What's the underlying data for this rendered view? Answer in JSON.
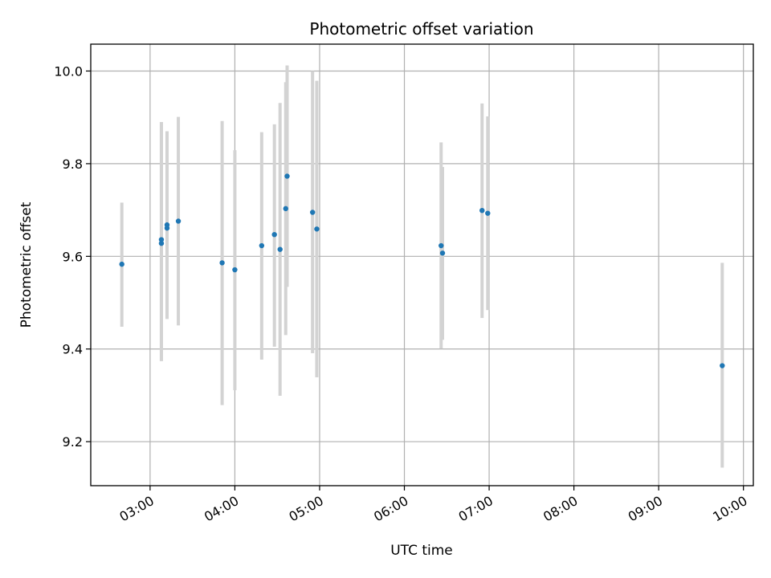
{
  "chart_data": {
    "type": "scatter",
    "title": "Photometric offset variation",
    "xlabel": "UTC time",
    "ylabel": "Photometric offset",
    "xlim": [
      "02:18",
      "10:07"
    ],
    "ylim": [
      9.105,
      10.058
    ],
    "grid": true,
    "x_ticks": [
      "03:00",
      "04:00",
      "05:00",
      "06:00",
      "07:00",
      "08:00",
      "09:00",
      "10:00"
    ],
    "y_ticks": [
      9.2,
      9.4,
      9.6,
      9.8,
      10.0
    ],
    "y_tick_labels": [
      "9.2",
      "9.4",
      "9.6",
      "9.8",
      "10.0"
    ],
    "colors": {
      "point": "#1f77b4",
      "error_bar": "#d3d3d3",
      "grid": "#b0b0b0"
    },
    "series": [
      {
        "points": [
          {
            "x": "02:40",
            "y": 9.583,
            "lo": 9.448,
            "hi": 9.716
          },
          {
            "x": "03:08",
            "y": 9.628,
            "lo": 9.374,
            "hi": 9.89
          },
          {
            "x": "03:08",
            "y": 9.636,
            "lo": 9.374,
            "hi": 9.89
          },
          {
            "x": "03:12",
            "y": 9.661,
            "lo": 9.465,
            "hi": 9.87
          },
          {
            "x": "03:12",
            "y": 9.668,
            "lo": 9.465,
            "hi": 9.87
          },
          {
            "x": "03:20",
            "y": 9.676,
            "lo": 9.451,
            "hi": 9.901
          },
          {
            "x": "03:51",
            "y": 9.586,
            "lo": 9.279,
            "hi": 9.892
          },
          {
            "x": "04:00",
            "y": 9.571,
            "lo": 9.311,
            "hi": 9.829
          },
          {
            "x": "04:19",
            "y": 9.623,
            "lo": 9.377,
            "hi": 9.868
          },
          {
            "x": "04:28",
            "y": 9.647,
            "lo": 9.405,
            "hi": 9.885
          },
          {
            "x": "04:32",
            "y": 9.615,
            "lo": 9.299,
            "hi": 9.931
          },
          {
            "x": "04:36",
            "y": 9.703,
            "lo": 9.43,
            "hi": 9.976
          },
          {
            "x": "04:37",
            "y": 9.773,
            "lo": 9.534,
            "hi": 10.012
          },
          {
            "x": "04:55",
            "y": 9.695,
            "lo": 9.391,
            "hi": 10.0
          },
          {
            "x": "04:58",
            "y": 9.659,
            "lo": 9.339,
            "hi": 9.979
          },
          {
            "x": "06:26",
            "y": 9.623,
            "lo": 9.401,
            "hi": 9.846
          },
          {
            "x": "06:27",
            "y": 9.607,
            "lo": 9.42,
            "hi": 9.793
          },
          {
            "x": "06:55",
            "y": 9.699,
            "lo": 9.467,
            "hi": 9.93
          },
          {
            "x": "06:59",
            "y": 9.693,
            "lo": 9.484,
            "hi": 9.902
          },
          {
            "x": "09:45",
            "y": 9.364,
            "lo": 9.144,
            "hi": 9.586
          }
        ]
      }
    ]
  }
}
